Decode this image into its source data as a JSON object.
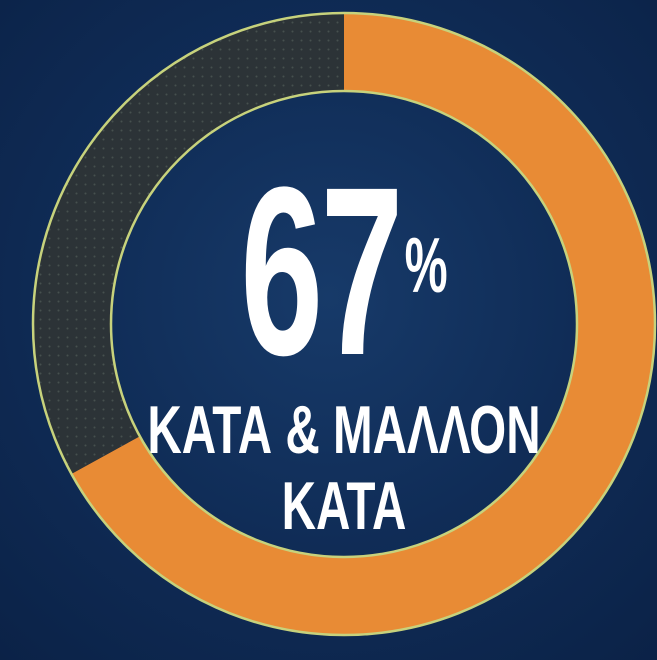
{
  "chart_data": {
    "type": "donut",
    "categories": [
      "ΚΑΤΑ & ΜΑΛΛΟΝ ΚΑΤΑ",
      null
    ],
    "values": [
      67,
      33
    ],
    "value_labels": [
      "67%",
      null
    ],
    "colors": [
      "#e88b35",
      "#2c3337"
    ]
  }
}
